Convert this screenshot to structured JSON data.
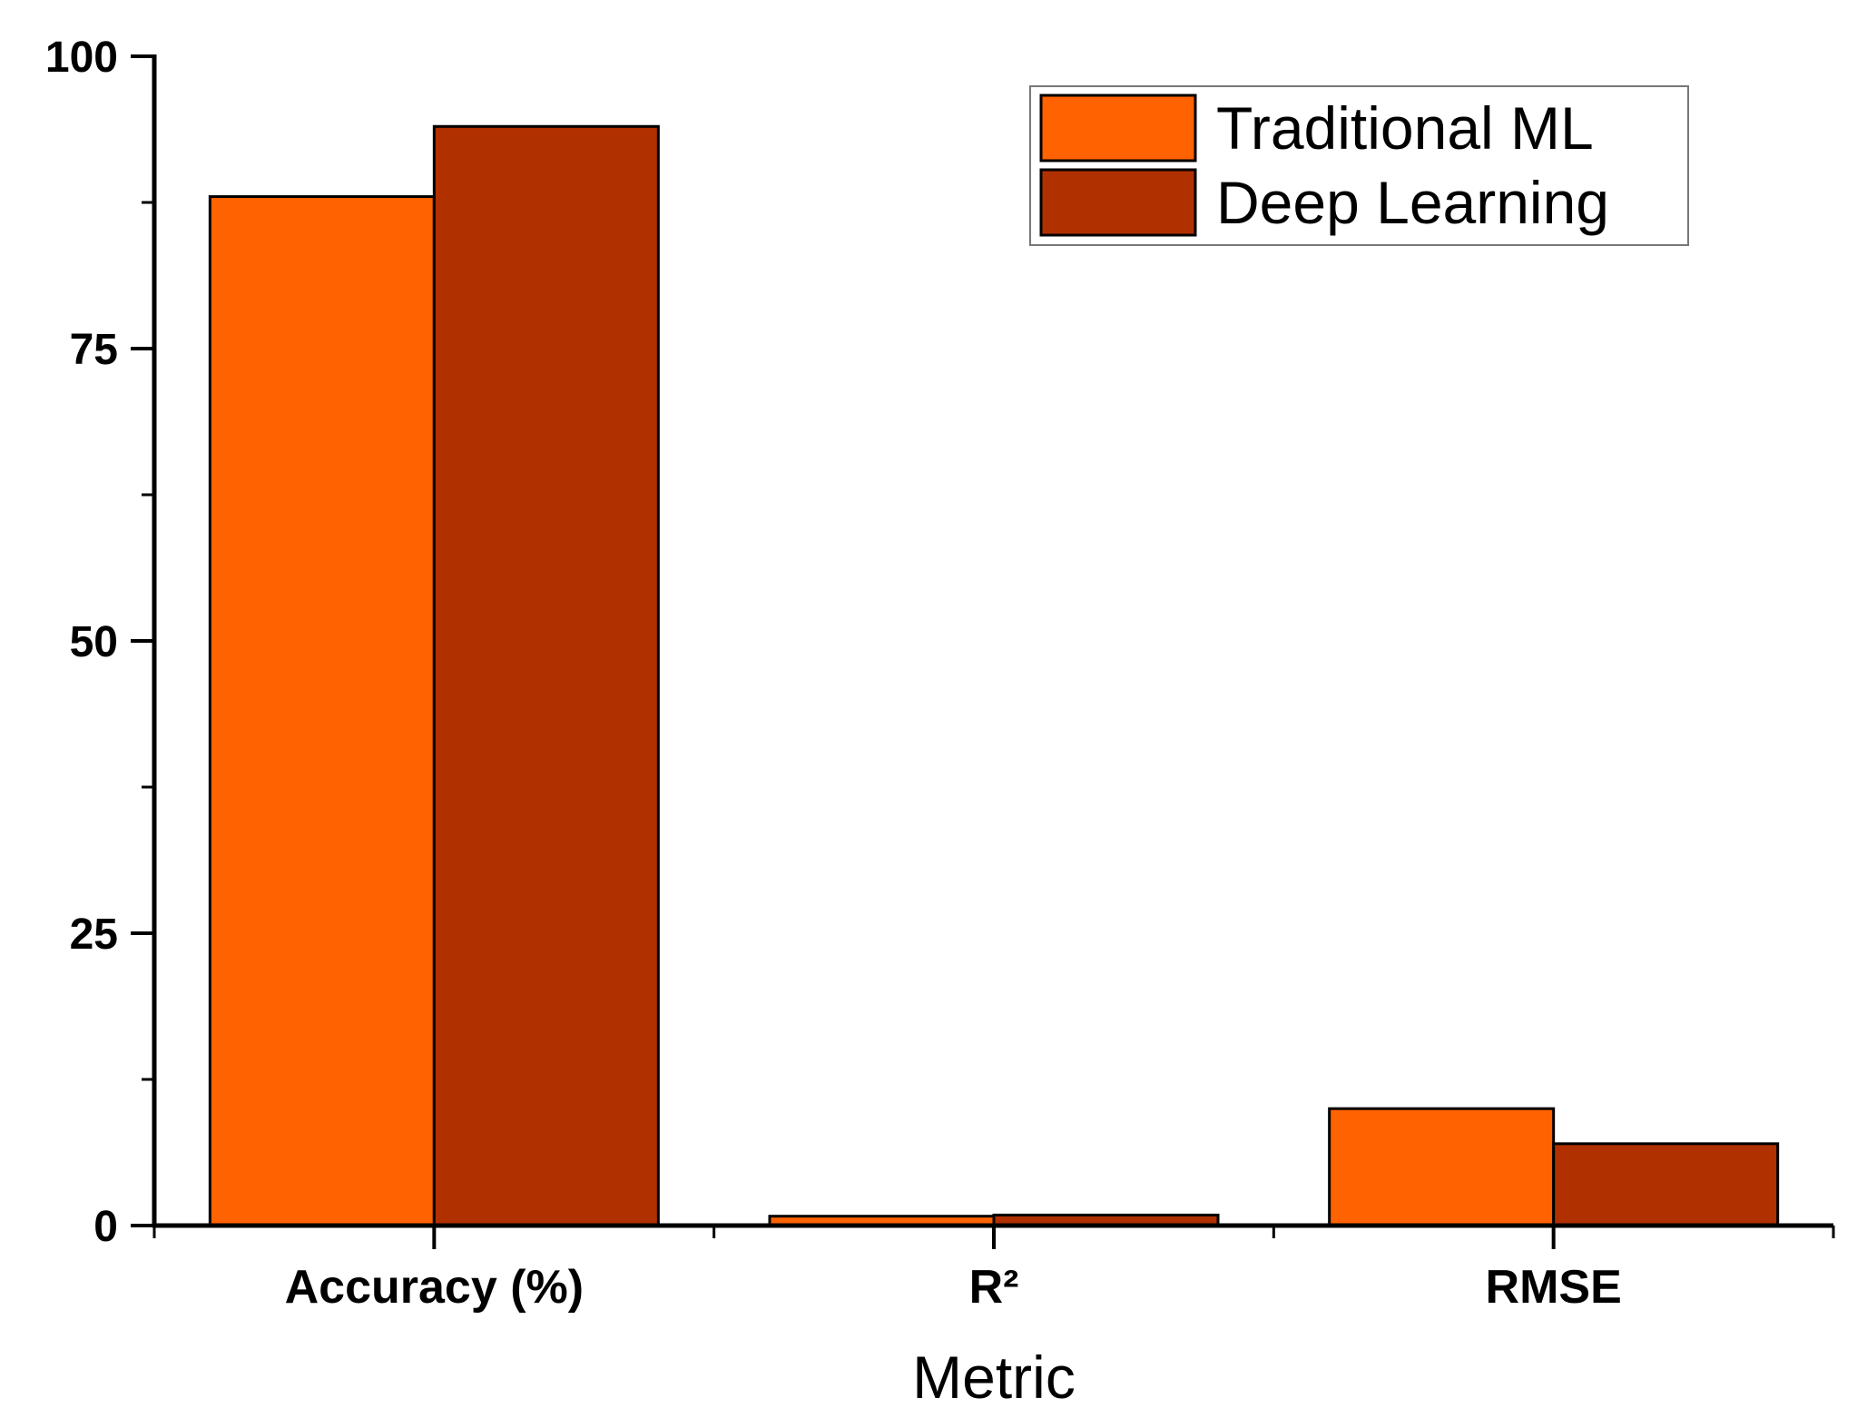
{
  "chart_data": {
    "type": "bar",
    "categories": [
      "Accuracy (%)",
      "R²",
      "RMSE"
    ],
    "series": [
      {
        "name": "Traditional ML",
        "values": [
          88,
          0.8,
          10
        ],
        "color": "#ff6200"
      },
      {
        "name": "Deep Learning",
        "values": [
          94,
          0.9,
          7
        ],
        "color": "#b03000"
      }
    ],
    "xlabel": "Metric",
    "ylabel": "",
    "ylim": [
      0,
      100
    ],
    "yticks": [
      0,
      25,
      50,
      75,
      100
    ],
    "grid": false,
    "legend_position": "top-right"
  }
}
